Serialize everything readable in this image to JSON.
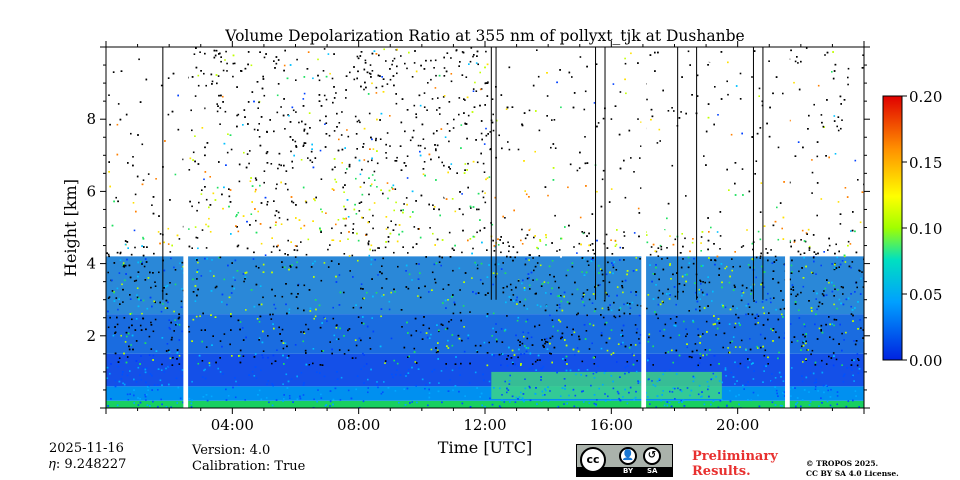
{
  "chart_data": {
    "type": "heatmap",
    "title": "Volume Depolarization Ratio at 355 nm of pollyxt_tjk at Dushanbe",
    "xlabel": "Time [UTC]",
    "ylabel": "Height [km]",
    "xlim": [
      0,
      24
    ],
    "ylim": [
      0,
      10
    ],
    "x_ticks": [
      {
        "value": 4,
        "label": "04:00"
      },
      {
        "value": 8,
        "label": "08:00"
      },
      {
        "value": 12,
        "label": "12:00"
      },
      {
        "value": 16,
        "label": "16:00"
      },
      {
        "value": 20,
        "label": "20:00"
      }
    ],
    "y_ticks": [
      {
        "value": 2,
        "label": "2"
      },
      {
        "value": 4,
        "label": "4"
      },
      {
        "value": 6,
        "label": "6"
      },
      {
        "value": 8,
        "label": "8"
      }
    ],
    "colorbar": {
      "range": [
        0.0,
        0.2
      ],
      "ticks": [
        {
          "value": 0.0,
          "label": "0.00"
        },
        {
          "value": 0.05,
          "label": "0.05"
        },
        {
          "value": 0.1,
          "label": "0.10"
        },
        {
          "value": 0.15,
          "label": "0.15"
        },
        {
          "value": 0.2,
          "label": "0.20"
        }
      ]
    },
    "no_data_gaps_utc": [
      [
        2.45,
        2.6
      ],
      [
        16.95,
        17.1
      ],
      [
        21.5,
        21.65
      ]
    ],
    "profile_lines_utc": [
      1.8,
      12.2,
      12.35,
      15.5,
      15.8,
      18.1,
      18.7,
      20.5,
      20.8
    ],
    "aerosol_layer_top_km": 0.6,
    "boundary_layer_top_km": 4.2,
    "cloud_layer_km": [
      4.5,
      6.5
    ]
  },
  "colors": {
    "low": "#0033ff",
    "mid": "#00cccc",
    "high": "#ffff00",
    "max": "#ff0000",
    "prelim": "#e8302f"
  },
  "meta": {
    "date": "2025-11-16",
    "eta": "𝜂: 9.248227",
    "version": "Version: 4.0",
    "calibration": "Calibration: True"
  },
  "license": {
    "badge_cc": "cc",
    "badge_by": "BY",
    "badge_sa": "SA",
    "preliminary_line1": "Preliminary",
    "preliminary_line2": "Results.",
    "copyright_line1": "© TROPOS 2025.",
    "copyright_line2": "CC BY SA 4.0 License."
  }
}
